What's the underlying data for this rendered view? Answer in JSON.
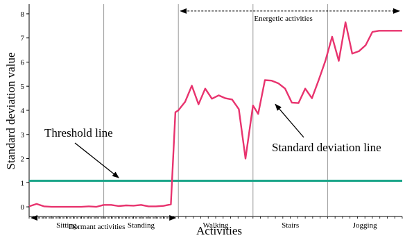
{
  "chart_data": {
    "type": "line",
    "ylabel": "Standard deviation value",
    "xlabel": "Activities",
    "ylim": [
      -0.4,
      8.4
    ],
    "yticks": [
      0,
      1,
      2,
      3,
      4,
      5,
      6,
      7,
      8
    ],
    "x_range": [
      0,
      5
    ],
    "activities": [
      "Sitting",
      "Standing",
      "Walking",
      "Stairs",
      "Jogging"
    ],
    "activity_boundaries": [
      1,
      2,
      3,
      4
    ],
    "threshold": {
      "value": 1.08,
      "label": "Threshold line",
      "color": "#1aa589"
    },
    "series": [
      {
        "label": "Standard deviation line",
        "color": "#e8336e",
        "x": [
          0,
          0.1,
          0.2,
          0.3,
          0.4,
          0.5,
          0.6,
          0.7,
          0.8,
          0.9,
          1.0,
          1.1,
          1.2,
          1.3,
          1.4,
          1.5,
          1.6,
          1.7,
          1.8,
          1.9,
          1.96,
          2.0,
          2.09,
          2.18,
          2.27,
          2.36,
          2.45,
          2.54,
          2.63,
          2.72,
          2.81,
          2.9,
          3.0,
          3.07,
          3.16,
          3.25,
          3.34,
          3.43,
          3.52,
          3.61,
          3.7,
          3.79,
          3.88,
          3.97,
          4.06,
          4.15,
          4.24,
          4.33,
          4.42,
          4.51,
          4.6,
          4.69,
          4.78,
          4.87,
          5.0
        ],
        "values": [
          0.02,
          0.12,
          0.02,
          0.0,
          0.0,
          0.0,
          0.0,
          0.0,
          0.02,
          0.0,
          0.08,
          0.08,
          0.03,
          0.06,
          0.05,
          0.08,
          0.02,
          0.02,
          0.04,
          0.1,
          3.92,
          4.0,
          4.35,
          5.02,
          4.25,
          4.9,
          4.48,
          4.62,
          4.5,
          4.45,
          4.05,
          2.0,
          4.2,
          3.85,
          5.25,
          5.23,
          5.12,
          4.9,
          4.32,
          4.3,
          4.9,
          4.5,
          5.25,
          6.05,
          7.05,
          6.05,
          7.65,
          6.35,
          6.45,
          6.7,
          7.25,
          7.3,
          7.3,
          7.3,
          7.3
        ]
      }
    ],
    "annotations": [
      {
        "text": "Energetic activities",
        "from": 2,
        "to": 5,
        "y": 8.0
      },
      {
        "text": "Dormant activities",
        "from": 0,
        "to": 2,
        "y": -0.4
      },
      {
        "text": "Standard deviation line",
        "arrow_to": [
          3.3,
          4.25
        ]
      },
      {
        "text": "Threshold line",
        "arrow_to": [
          1.2,
          1.12
        ]
      }
    ]
  }
}
